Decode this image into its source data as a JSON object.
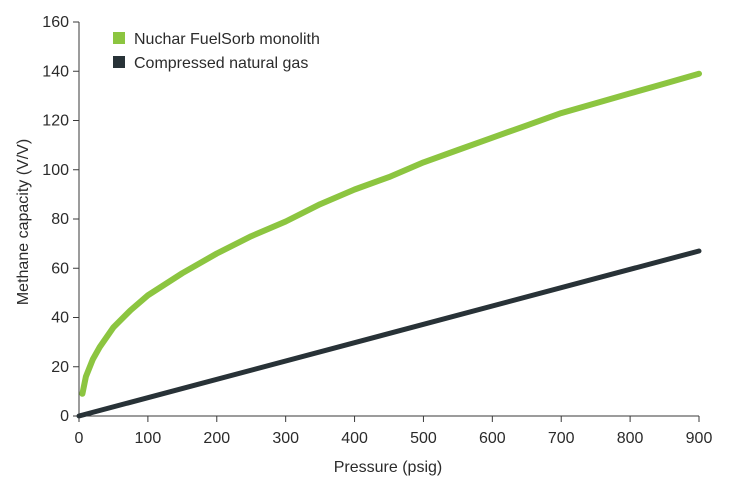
{
  "chart_data": {
    "type": "line",
    "xlabel": "Pressure (psig)",
    "ylabel": "Methane capacity (V/V)",
    "xlim": [
      0,
      900
    ],
    "ylim": [
      0,
      160
    ],
    "xticks": [
      0,
      100,
      200,
      300,
      400,
      500,
      600,
      700,
      800,
      900
    ],
    "yticks": [
      0,
      20,
      40,
      60,
      80,
      100,
      120,
      140,
      160
    ],
    "grid": false,
    "legend_position": "top-left",
    "series": [
      {
        "name": "Nuchar FuelSorb monolith",
        "color": "#8cc540",
        "x": [
          5,
          10,
          20,
          30,
          50,
          75,
          100,
          150,
          200,
          250,
          300,
          350,
          400,
          450,
          500,
          550,
          600,
          650,
          700,
          750,
          800,
          850,
          900
        ],
        "y": [
          9,
          16,
          23,
          28,
          36,
          43,
          49,
          58,
          66,
          73,
          79,
          86,
          92,
          97,
          103,
          108,
          113,
          118,
          123,
          127,
          131,
          135,
          139
        ]
      },
      {
        "name": "Compressed natural gas",
        "color": "#283237",
        "x": [
          0,
          900
        ],
        "y": [
          0,
          67
        ]
      }
    ]
  }
}
